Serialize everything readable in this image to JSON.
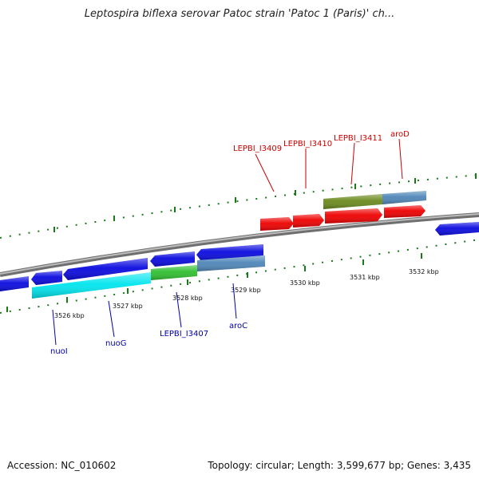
{
  "title": "Leptospira biflexa serovar Patoc strain 'Patoc 1 (Paris)' ch...",
  "footer": {
    "accession": "Accession: NC_010602",
    "stats": "Topology: circular; Length: 3,599,677 bp; Genes: 3,435"
  },
  "colors": {
    "forward_label": "#cc0000",
    "reverse_label": "#0000aa",
    "backbone": "#808080",
    "scale_ticks": "#1a7a1a"
  },
  "scale_labels": [
    "3526 kbp",
    "3527 kbp",
    "3528 kbp",
    "3529 kbp",
    "3530 kbp",
    "3531 kbp",
    "3532 kbp"
  ],
  "gene_labels": {
    "forward": [
      "LEPBI_I3409",
      "LEPBI_I3410",
      "LEPBI_I3411",
      "aroD"
    ],
    "reverse": [
      "nuoI",
      "nuoG",
      "LEPBI_I3407",
      "aroC"
    ]
  }
}
